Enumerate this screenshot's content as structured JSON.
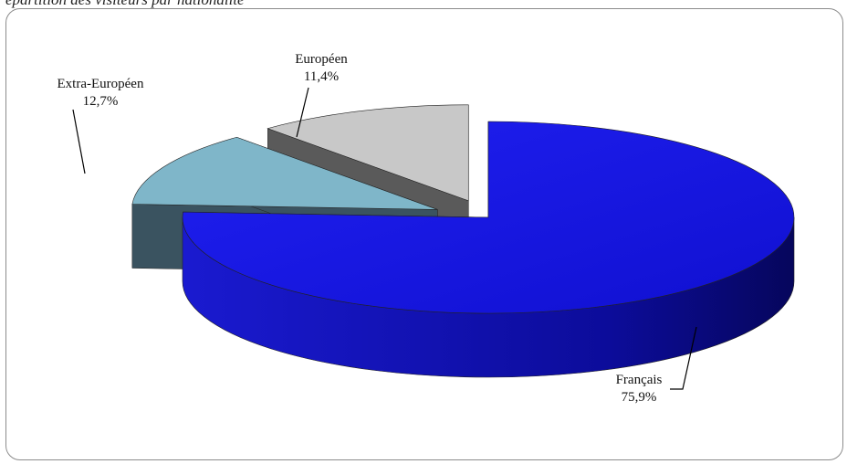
{
  "page": {
    "heading_fragment": "épartition des visiteurs par nationalité"
  },
  "chart_data": {
    "type": "pie",
    "title": "",
    "three_d": true,
    "exploded": true,
    "legend": "none",
    "slices": [
      {
        "label": "Français",
        "value": 75.9,
        "value_text": "75,9%",
        "color": "#1414e6"
      },
      {
        "label": "Extra-Européen",
        "value": 12.7,
        "value_text": "12,7%",
        "color": "#7fb6c9"
      },
      {
        "label": "Européen",
        "value": 11.4,
        "value_text": "11,4%",
        "color": "#c8c8c8"
      }
    ]
  }
}
